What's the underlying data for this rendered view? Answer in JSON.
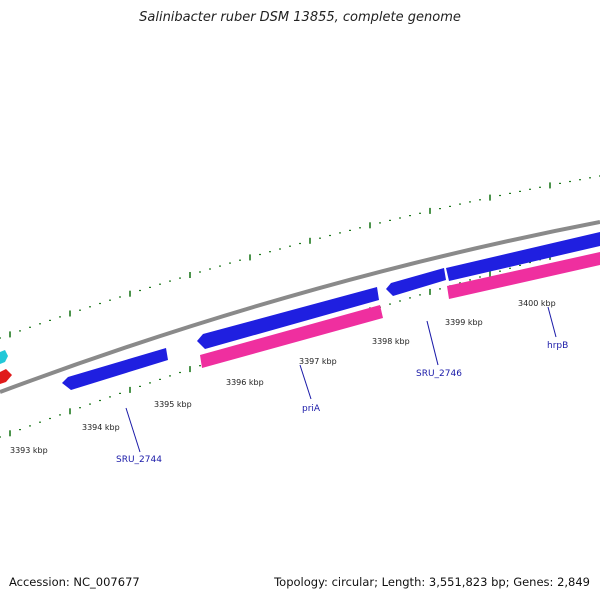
{
  "title": "Salinibacter ruber DSM 13855, complete genome",
  "footer": {
    "accession": "Accession: NC_007677",
    "summary": "Topology: circular; Length: 3,551,823 bp; Genes: 2,849"
  },
  "colors": {
    "backbone": "#8a8a8a",
    "forward_gene": "#1f1fe0",
    "reverse_gene": "#ef2f9f",
    "ticks": "#1f7a1f",
    "label_text": "#1a1aa8",
    "offscreen_cyan": "#22c8d8",
    "offscreen_red": "#e01a1a"
  },
  "scale": {
    "unit": "kbp",
    "labels": [
      {
        "kbp": 3393,
        "text": "3393 kbp"
      },
      {
        "kbp": 3394,
        "text": "3394 kbp"
      },
      {
        "kbp": 3395,
        "text": "3395 kbp"
      },
      {
        "kbp": 3396,
        "text": "3396 kbp"
      },
      {
        "kbp": 3397,
        "text": "3397 kbp"
      },
      {
        "kbp": 3398,
        "text": "3398 kbp"
      },
      {
        "kbp": 3399,
        "text": "3399 kbp"
      },
      {
        "kbp": 3400,
        "text": "3400 kbp"
      }
    ]
  },
  "genes": [
    {
      "label": "SRU_2744",
      "strand": "forward"
    },
    {
      "label": "priA",
      "strand": "reverse"
    },
    {
      "label": "SRU_2746",
      "strand": "forward"
    },
    {
      "label": "hrpB",
      "strand": "reverse"
    }
  ]
}
